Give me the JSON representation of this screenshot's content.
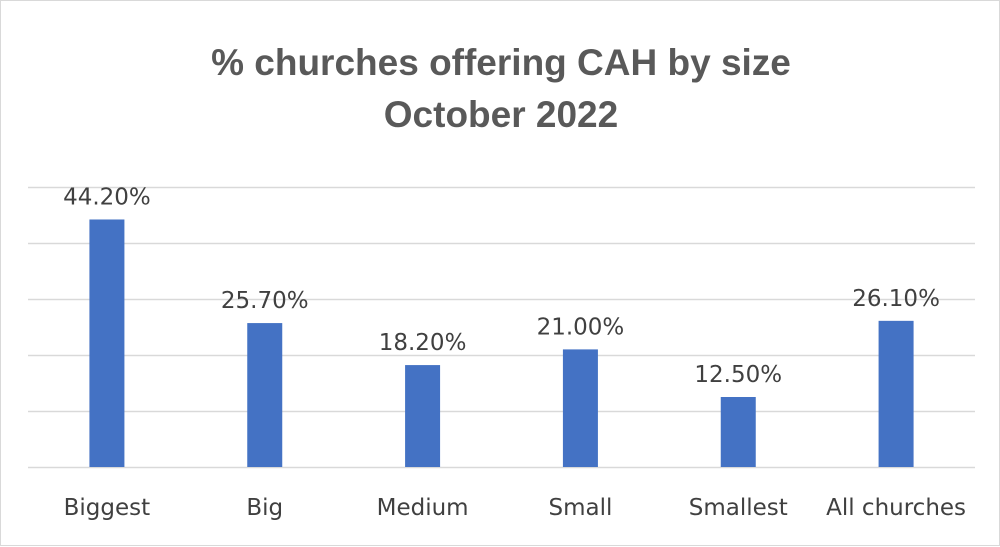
{
  "chart_data": {
    "type": "bar",
    "title": "% churches offering CAH by size",
    "subtitle": "October 2022",
    "categories": [
      "Biggest",
      "Big",
      "Medium",
      "Small",
      "Smallest",
      "All churches"
    ],
    "values": [
      44.2,
      25.7,
      18.2,
      21.0,
      12.5,
      26.1
    ],
    "data_labels": [
      "44.20%",
      "25.70%",
      "18.20%",
      "21.00%",
      "12.50%",
      "26.10%"
    ],
    "ylim": [
      0,
      50
    ],
    "grid": true,
    "legend": "none",
    "colors": {
      "bar": "#4472c4",
      "grid": "#d9d9d9",
      "text": "#404040",
      "title": "#595959"
    }
  }
}
